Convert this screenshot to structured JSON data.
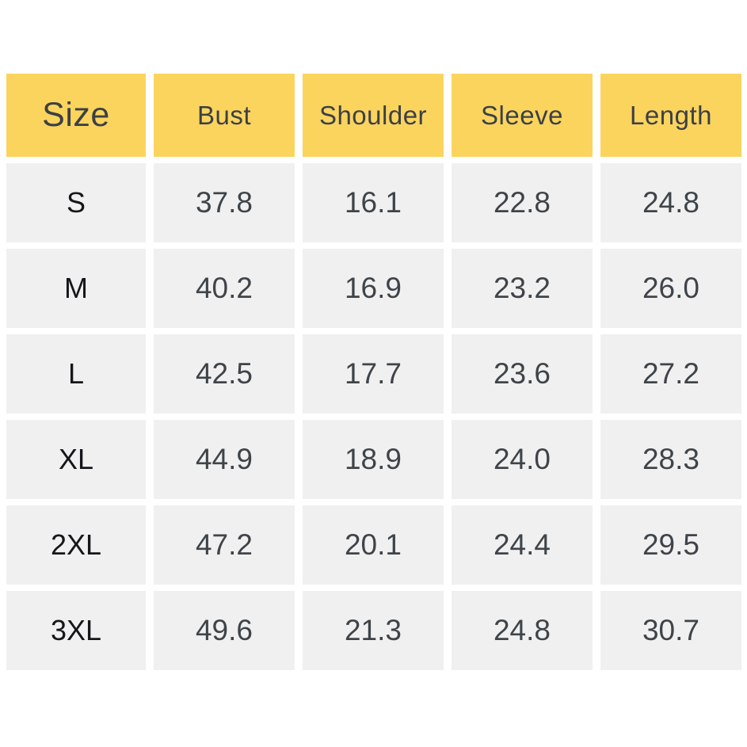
{
  "chart_data": {
    "type": "table",
    "title": "",
    "columns": [
      "Size",
      "Bust",
      "Shoulder",
      "Sleeve",
      "Length"
    ],
    "rows": [
      [
        "S",
        "37.8",
        "16.1",
        "22.8",
        "24.8"
      ],
      [
        "M",
        "40.2",
        "16.9",
        "23.2",
        "26.0"
      ],
      [
        "L",
        "42.5",
        "17.7",
        "23.6",
        "27.2"
      ],
      [
        "XL",
        "44.9",
        "18.9",
        "24.0",
        "28.3"
      ],
      [
        "2XL",
        "47.2",
        "20.1",
        "24.4",
        "29.5"
      ],
      [
        "3XL",
        "49.6",
        "21.3",
        "24.8",
        "30.7"
      ]
    ],
    "layout": {
      "header_position": "top",
      "grid": "cell-gap",
      "background": "#ffffff"
    },
    "colors": {
      "header_bg": "#fbd45e",
      "header_text": "#3c4045",
      "cell_bg": "#f0f0f0",
      "value_text": "#3f4449",
      "size_text": "#141619",
      "page_bg": "#ffffff"
    }
  }
}
